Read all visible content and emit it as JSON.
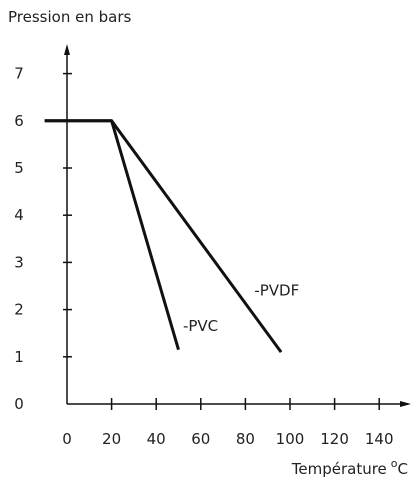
{
  "chart_data": {
    "type": "line",
    "ylabel": "Pression en bars",
    "xlabel": "Température",
    "xlabel_unit_sup": "o",
    "xlabel_unit": "C",
    "xlim": [
      0,
      150
    ],
    "ylim": [
      0,
      7.8
    ],
    "xticks": [
      0,
      20,
      40,
      60,
      80,
      100,
      120,
      140
    ],
    "yticks": [
      0,
      1,
      2,
      3,
      4,
      5,
      6,
      7
    ],
    "grid": false,
    "legend": "inline labels",
    "series": [
      {
        "name": "-PVDF",
        "points": [
          [
            -10,
            6
          ],
          [
            20,
            6
          ],
          [
            96,
            1.1
          ]
        ],
        "label_at": [
          84,
          2.3
        ]
      },
      {
        "name": "-PVC",
        "points": [
          [
            -10,
            6
          ],
          [
            20,
            6
          ],
          [
            50,
            1.15
          ]
        ],
        "label_at": [
          52,
          1.55
        ]
      }
    ],
    "colors": {
      "line": "#111111",
      "axis": "#111111"
    }
  }
}
